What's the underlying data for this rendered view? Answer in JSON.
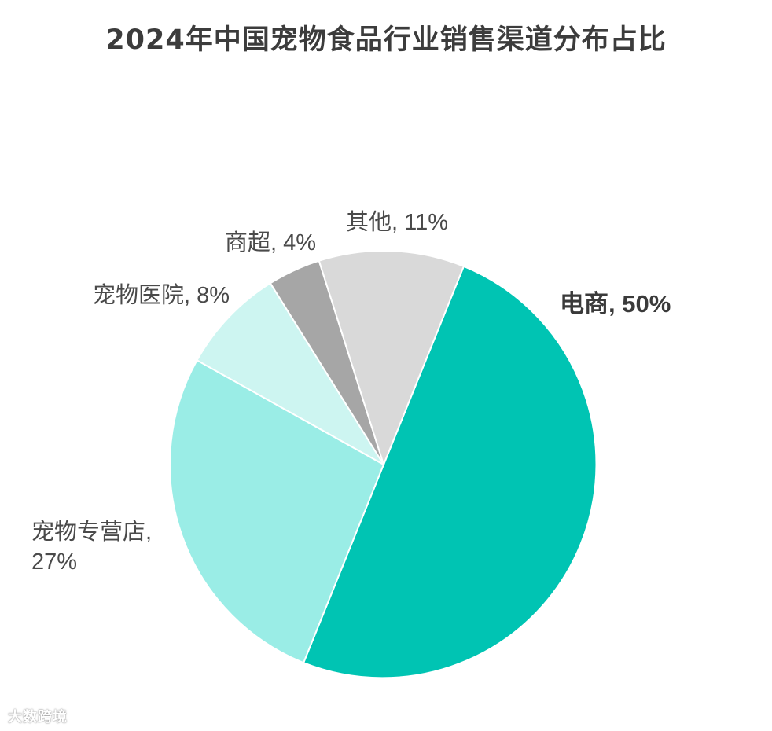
{
  "title": "2024年中国宠物食品行业销售渠道分布占比",
  "watermark": "大数跨境",
  "chart_data": {
    "type": "pie",
    "title": "2024年中国宠物食品行业销售渠道分布占比",
    "start_angle_deg": 22,
    "direction": "clockwise",
    "slices": [
      {
        "name": "电商",
        "value": 50,
        "label_lines": [
          "电商, 50%"
        ],
        "color": "#00c4b3",
        "bold": true
      },
      {
        "name": "宠物专营店",
        "value": 27,
        "label_lines": [
          "宠物专营店,",
          "27%"
        ],
        "color": "#9aede6",
        "bold": false
      },
      {
        "name": "宠物医院",
        "value": 8,
        "label_lines": [
          "宠物医院, 8%"
        ],
        "color": "#cdf5f1",
        "bold": false
      },
      {
        "name": "商超",
        "value": 4,
        "label_lines": [
          "商超, 4%"
        ],
        "color": "#a6a6a6",
        "bold": false
      },
      {
        "name": "其他",
        "value": 11,
        "label_lines": [
          "其他, 11%"
        ],
        "color": "#d9d9d9",
        "bold": false
      }
    ]
  }
}
